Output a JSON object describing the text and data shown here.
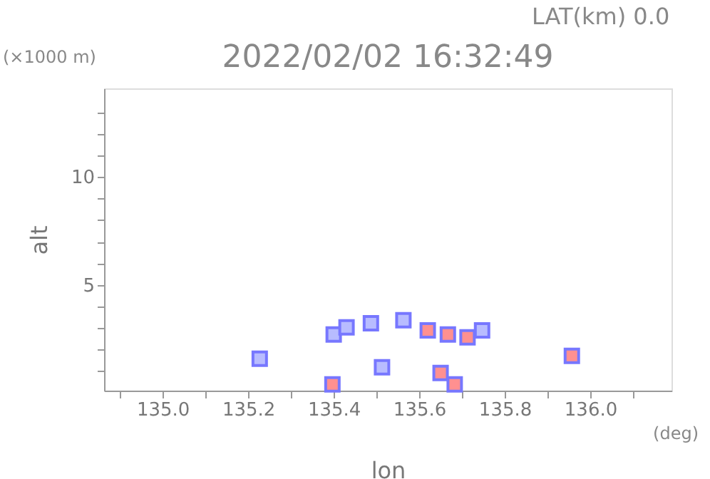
{
  "chart_data": {
    "type": "scatter",
    "title": "2022/02/02 16:32:49",
    "xlabel": "lon",
    "ylabel": "alt",
    "annotations": [
      "LAT(km) 0.0",
      "(×1000 m)",
      "(deg)"
    ],
    "xlim": [
      134.863,
      136.19
    ],
    "ylim": [
      0.1,
      14.1
    ],
    "xticks": [
      {
        "value": 134.9,
        "label": null
      },
      {
        "value": 135.0,
        "label": "135.0"
      },
      {
        "value": 135.1,
        "label": null
      },
      {
        "value": 135.2,
        "label": "135.2"
      },
      {
        "value": 135.3,
        "label": null
      },
      {
        "value": 135.4,
        "label": "135.4"
      },
      {
        "value": 135.5,
        "label": null
      },
      {
        "value": 135.6,
        "label": "135.6"
      },
      {
        "value": 135.7,
        "label": null
      },
      {
        "value": 135.8,
        "label": "135.8"
      },
      {
        "value": 135.9,
        "label": null
      },
      {
        "value": 136.0,
        "label": "136.0"
      },
      {
        "value": 136.1,
        "label": null
      }
    ],
    "yticks": [
      {
        "value": 1,
        "label": null
      },
      {
        "value": 2,
        "label": null
      },
      {
        "value": 3,
        "label": null
      },
      {
        "value": 4,
        "label": null
      },
      5,
      {
        "value": 6,
        "label": null
      },
      {
        "value": 7,
        "label": null
      },
      {
        "value": 8,
        "label": null
      },
      {
        "value": 9,
        "label": null
      },
      10,
      {
        "value": 11,
        "label": null
      },
      {
        "value": 12,
        "label": null
      },
      {
        "value": 13,
        "label": null
      }
    ],
    "grid": false,
    "legend": false,
    "marker": "square",
    "series": [
      {
        "color": "#b8bcff",
        "x": [
          135.227,
          135.4,
          135.43,
          135.513,
          135.487,
          135.563,
          135.747
        ],
        "values": [
          1.58,
          2.7,
          3.03,
          1.18,
          3.22,
          3.36,
          2.89
        ]
      },
      {
        "color": "#ff9090",
        "x": [
          135.62,
          135.667,
          135.713,
          135.957,
          135.683,
          135.65,
          135.397
        ],
        "values": [
          2.89,
          2.7,
          2.57,
          1.71,
          0.39,
          0.92,
          0.39
        ]
      }
    ]
  }
}
